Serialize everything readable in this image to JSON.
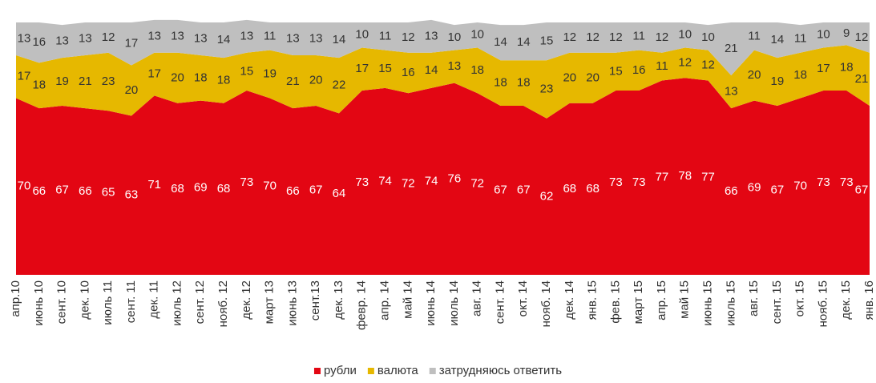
{
  "chart_data": {
    "type": "stacked_area",
    "categories": [
      "апр.10",
      "июнь 10",
      "сент. 10",
      "дек. 10",
      "июль 11",
      "сент. 11",
      "дек. 11",
      "июль 12",
      "сент. 12",
      "нояб. 12",
      "дек. 12",
      "март 13",
      "июнь 13",
      "сент.13",
      "дек. 13",
      "февр. 14",
      "апр. 14",
      "май 14",
      "июнь 14",
      "июль 14",
      "авг. 14",
      "сент. 14",
      "окт. 14",
      "нояб. 14",
      "дек. 14",
      "янв. 15",
      "фев. 15",
      "март 15",
      "апр. 15",
      "май 15",
      "июнь 15",
      "июль 15",
      "авг. 15",
      "сент. 15",
      "окт. 15",
      "нояб. 15",
      "дек. 15",
      "янв. 16"
    ],
    "series": [
      {
        "name": "рубли",
        "color": "#e30613",
        "values": [
          70,
          66,
          67,
          66,
          65,
          63,
          71,
          68,
          69,
          68,
          73,
          70,
          66,
          67,
          64,
          73,
          74,
          72,
          74,
          76,
          72,
          67,
          67,
          62,
          68,
          68,
          73,
          73,
          77,
          78,
          77,
          66,
          69,
          67,
          70,
          73,
          73,
          67
        ]
      },
      {
        "name": "валюта",
        "color": "#e6b800",
        "values": [
          17,
          18,
          19,
          21,
          23,
          20,
          17,
          20,
          18,
          18,
          15,
          19,
          21,
          20,
          22,
          17,
          15,
          16,
          14,
          13,
          18,
          18,
          18,
          23,
          20,
          20,
          15,
          16,
          11,
          12,
          12,
          13,
          20,
          19,
          18,
          17,
          18,
          21
        ]
      },
      {
        "name": "затрудняюсь ответить",
        "color": "#bfbfbf",
        "values": [
          13,
          16,
          13,
          13,
          12,
          17,
          13,
          13,
          13,
          14,
          13,
          11,
          13,
          13,
          14,
          10,
          11,
          12,
          13,
          10,
          10,
          14,
          14,
          15,
          12,
          12,
          12,
          11,
          12,
          10,
          10,
          21,
          11,
          14,
          11,
          10,
          9,
          12
        ]
      }
    ],
    "ylim": [
      0,
      100
    ],
    "legend": "bottom"
  }
}
